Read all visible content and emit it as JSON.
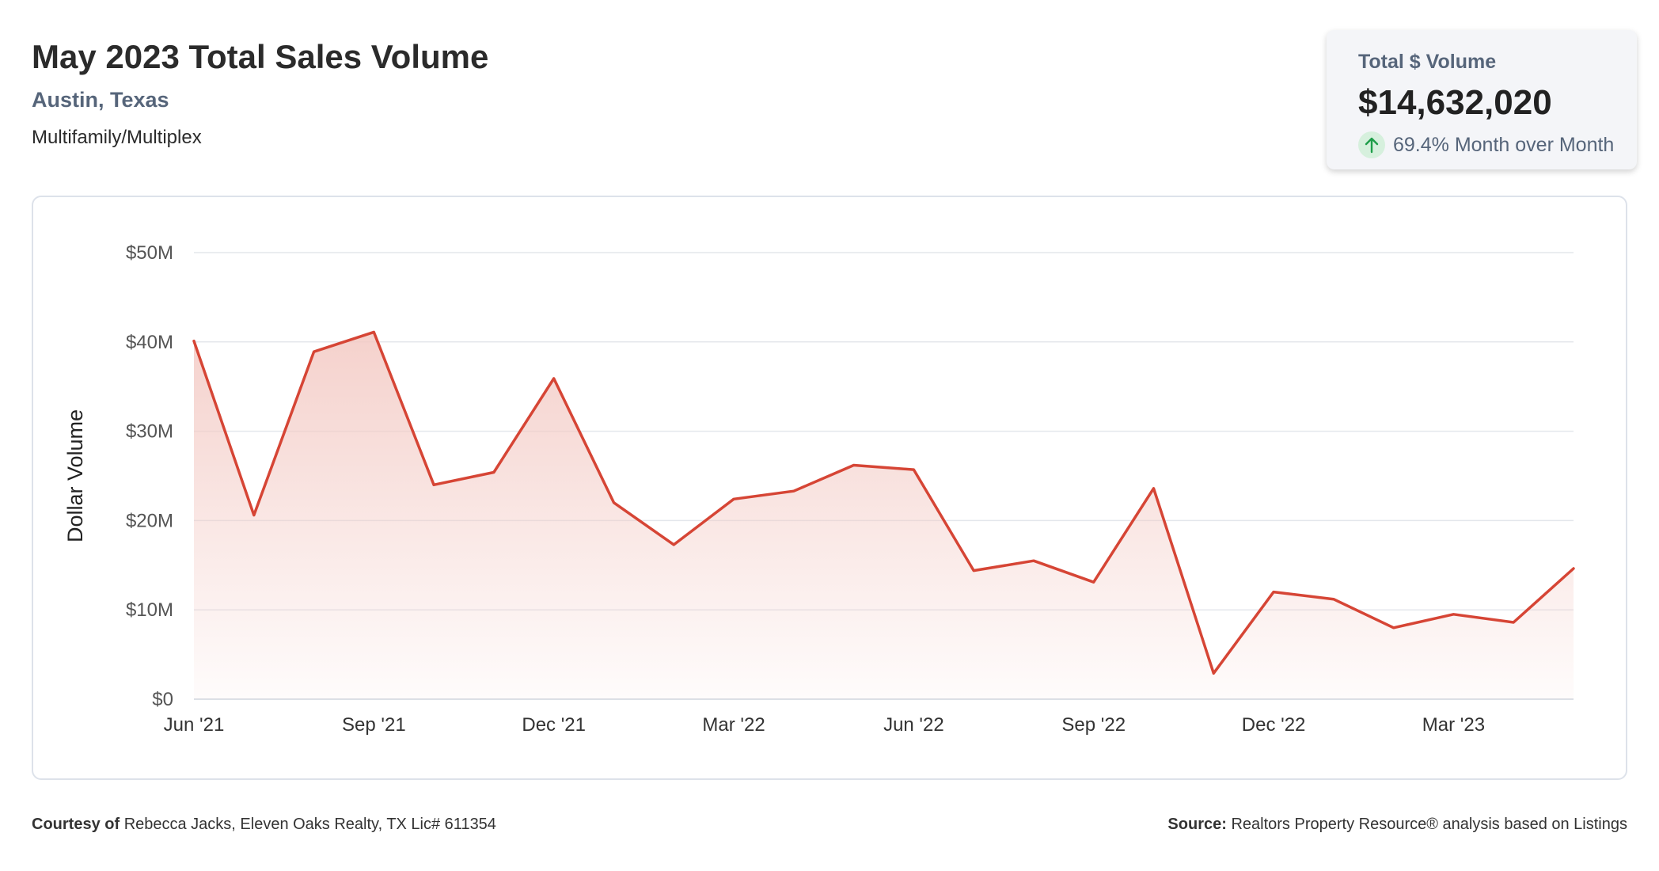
{
  "header": {
    "title": "May 2023 Total Sales Volume",
    "location": "Austin, Texas",
    "property_type": "Multifamily/Multiplex"
  },
  "kpi": {
    "label": "Total $ Volume",
    "value": "$14,632,020",
    "change": "69.4% Month over Month",
    "direction": "up",
    "up_color": "#1f9e4a"
  },
  "chart_data": {
    "type": "area",
    "ylabel": "Dollar Volume",
    "ylim": [
      0,
      50000000
    ],
    "y_ticks": [
      0,
      10000000,
      20000000,
      30000000,
      40000000,
      50000000
    ],
    "y_tick_labels": [
      "$0",
      "$10M",
      "$20M",
      "$30M",
      "$40M",
      "$50M"
    ],
    "x_tick_labels": [
      "Jun '21",
      "Sep '21",
      "Dec '21",
      "Mar '22",
      "Jun '22",
      "Sep '22",
      "Dec '22",
      "Mar '23"
    ],
    "x": [
      "2021-06",
      "2021-07",
      "2021-08",
      "2021-09",
      "2021-10",
      "2021-11",
      "2021-12",
      "2022-01",
      "2022-02",
      "2022-03",
      "2022-04",
      "2022-05",
      "2022-06",
      "2022-07",
      "2022-08",
      "2022-09",
      "2022-10",
      "2022-11",
      "2022-12",
      "2023-01",
      "2023-02",
      "2023-03",
      "2023-04",
      "2023-05"
    ],
    "series": [
      {
        "values": [
          40100000,
          20600000,
          38900000,
          41100000,
          24000000,
          25400000,
          35900000,
          22000000,
          17300000,
          22400000,
          23300000,
          26200000,
          25700000,
          14400000,
          15500000,
          13100000,
          23600000,
          2900000,
          12000000,
          11200000,
          8000000,
          9500000,
          8600000,
          14632020
        ]
      }
    ],
    "line_color": "#d64535",
    "fill_color": "#f3c9c3",
    "grid": true,
    "legend": "none"
  },
  "footer": {
    "courtesy_label": "Courtesy of",
    "courtesy_text": "Rebecca Jacks, Eleven Oaks Realty, TX Lic# 611354",
    "source_label": "Source:",
    "source_text": "Realtors Property Resource® analysis based on Listings"
  }
}
